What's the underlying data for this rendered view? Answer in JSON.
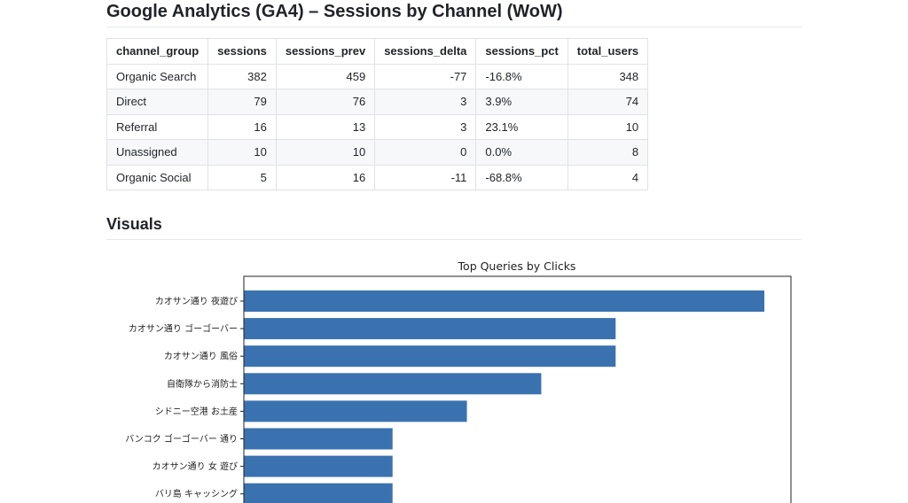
{
  "page": {
    "title": "Google Analytics (GA4) – Sessions by Channel (WoW)",
    "visuals_heading": "Visuals"
  },
  "table": {
    "columns": [
      "channel_group",
      "sessions",
      "sessions_prev",
      "sessions_delta",
      "sessions_pct",
      "total_users"
    ],
    "rows": [
      [
        "Organic Search",
        "382",
        "459",
        "-77",
        "-16.8%",
        "348"
      ],
      [
        "Direct",
        "79",
        "76",
        "3",
        "3.9%",
        "74"
      ],
      [
        "Referral",
        "16",
        "13",
        "3",
        "23.1%",
        "10"
      ],
      [
        "Unassigned",
        "10",
        "10",
        "0",
        "0.0%",
        "8"
      ],
      [
        "Organic Social",
        "5",
        "16",
        "-11",
        "-68.8%",
        "4"
      ]
    ]
  },
  "chart_data": {
    "type": "bar",
    "orientation": "horizontal",
    "title": "Top Queries by Clicks",
    "xlabel": "",
    "ylabel": "",
    "bar_color": "#3a72b0",
    "xlim": [
      0,
      8
    ],
    "categories": [
      "カオサン通り 夜遊び",
      "カオサン通り ゴーゴーバー",
      "カオサン通り 風俗",
      "自衛隊から消防士",
      "シドニー空港 お土産",
      "バンコク ゴーゴーバー 通り",
      "カオサン通り 女 遊び",
      "バリ島 キャッシング"
    ],
    "values": [
      7,
      5,
      5,
      4,
      3,
      2,
      2,
      2
    ]
  }
}
